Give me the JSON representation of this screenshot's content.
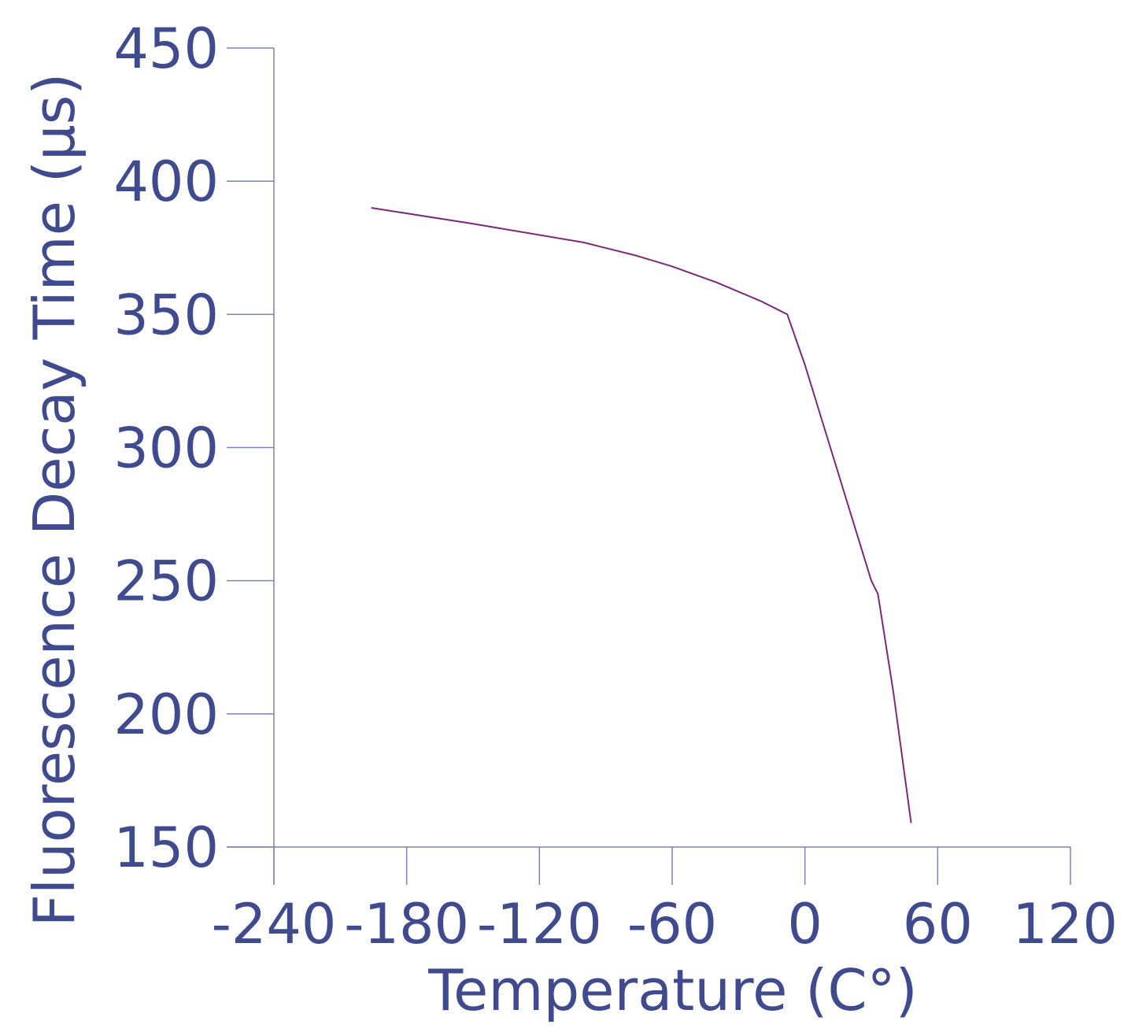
{
  "chart_data": {
    "type": "line",
    "title": "",
    "xlabel": "Temperature (C°)",
    "ylabel": "Fluorescence Decay Time (µs)",
    "xlim": [
      -240,
      120
    ],
    "ylim": [
      150,
      450
    ],
    "x_ticks": [
      -240,
      -180,
      -120,
      -60,
      0,
      60,
      120
    ],
    "y_ticks": [
      150,
      200,
      250,
      300,
      350,
      400,
      450
    ],
    "x_tick_labels": [
      "-240",
      "-180",
      "-120",
      "-60",
      "0",
      "60",
      "120"
    ],
    "y_tick_labels": [
      "150",
      "200",
      "250",
      "300",
      "350",
      "400",
      "450"
    ],
    "grid": false,
    "colors": {
      "text": "#3f4a8f",
      "axis": "#7d82b5",
      "line": "#7a2a78"
    },
    "series": [
      {
        "x": [
          -196,
          -150,
          -100,
          -76,
          -60,
          -40,
          -20,
          -8,
          0,
          10,
          20,
          30,
          33,
          40,
          48
        ],
        "y": [
          390,
          384,
          377,
          372,
          368,
          362,
          355,
          350,
          331,
          304,
          277,
          250,
          245,
          208,
          159
        ]
      }
    ]
  }
}
